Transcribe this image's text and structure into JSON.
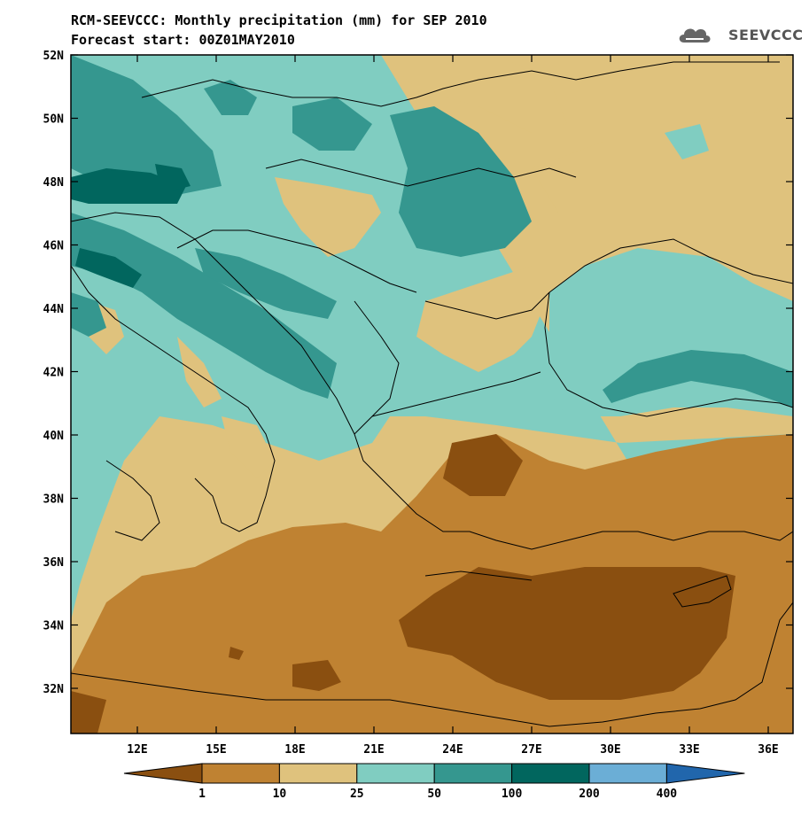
{
  "title": {
    "line1": "RCM-SEEVCCC: Monthly precipitation (mm) for SEP 2010",
    "line2": "Forecast start: 00Z01MAY2010"
  },
  "logo": {
    "text": "SEEVCCC",
    "icon": "cloud-logo-icon"
  },
  "axes": {
    "lat_labels": [
      "52N",
      "50N",
      "48N",
      "46N",
      "44N",
      "42N",
      "40N",
      "38N",
      "36N",
      "34N",
      "32N"
    ],
    "lon_labels": [
      "12E",
      "15E",
      "18E",
      "21E",
      "24E",
      "27E",
      "30E",
      "33E",
      "36E"
    ]
  },
  "legend": {
    "thresholds": [
      "1",
      "10",
      "25",
      "50",
      "100",
      "200",
      "400"
    ],
    "colors": [
      "#8a4f10",
      "#bf8232",
      "#dfc27d",
      "#80cdc1",
      "#35978f",
      "#01665e",
      "#6baed6",
      "#2166ac"
    ]
  }
}
